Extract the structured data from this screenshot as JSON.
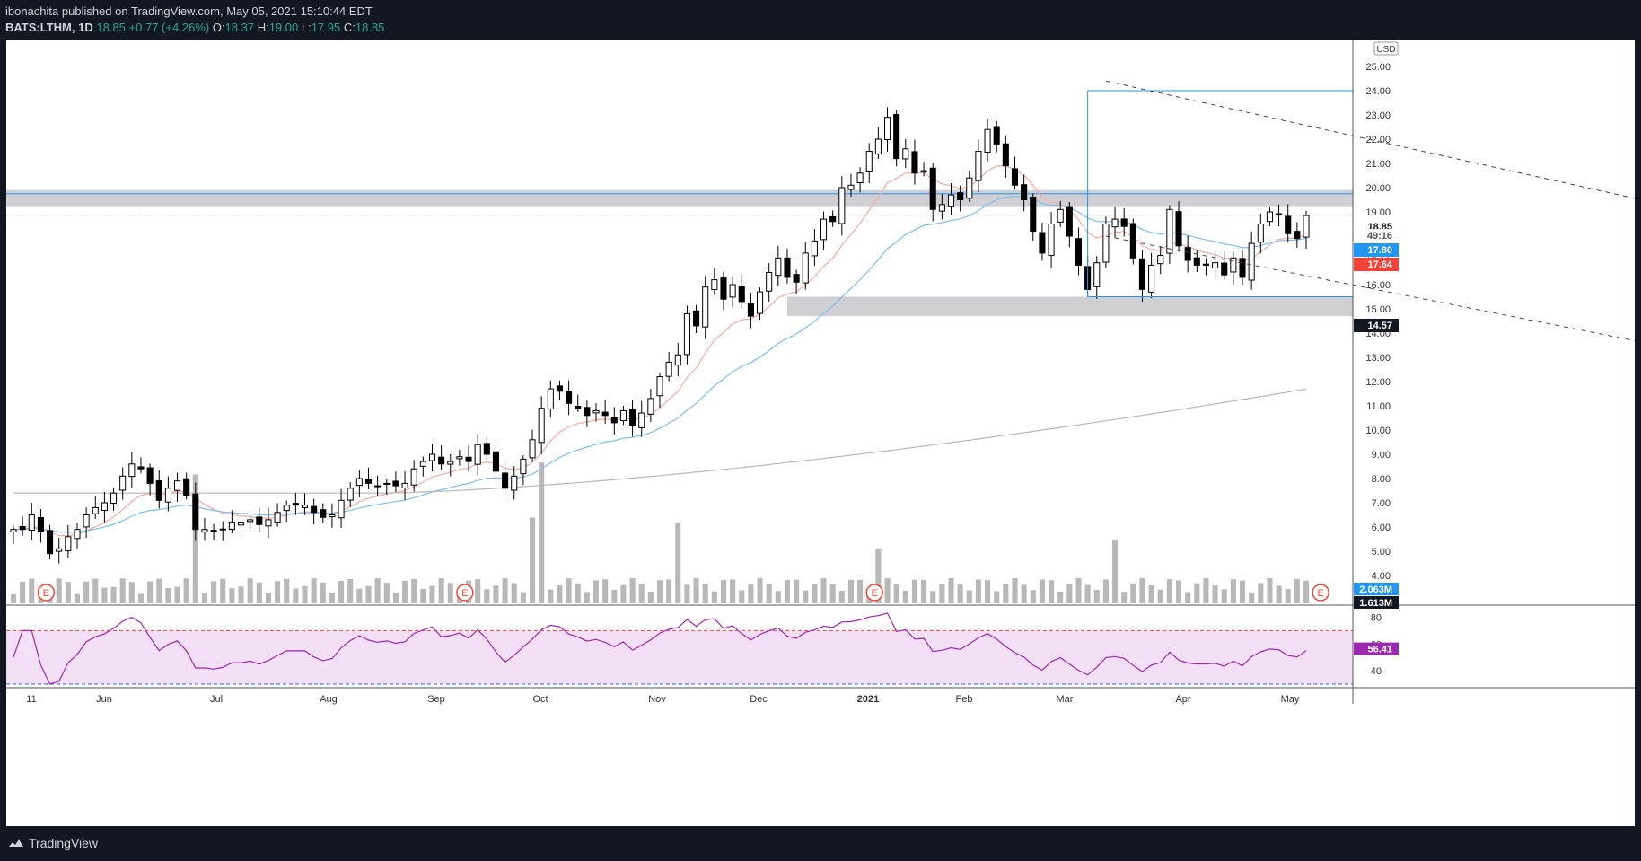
{
  "header": {
    "publisher_line": "ibonachita published on TradingView.com, May 05, 2021 15:10:44 EDT",
    "symbol": "BATS:LTHM, 1D",
    "last": "18.85",
    "change": "+0.77 (+4.26%)",
    "open_label": "O:",
    "open": "18.37",
    "high_label": "H:",
    "high": "19.00",
    "low_label": "L:",
    "low": "17.95",
    "close_label": "C:",
    "close": "18.85"
  },
  "footer": {
    "brand": "TradingView"
  },
  "colors": {
    "up": "#ffffff",
    "down": "#000000",
    "candle_border": "#000000",
    "ema_fast": "#f7a9a3",
    "ema_mid": "#7ebef0",
    "sma_long": "#b8b8b8",
    "zone": "#c8c8cc",
    "box": "#2196f3",
    "rsi_line": "#9c27b0",
    "rsi_fill": "#f3e0f7",
    "volume": "#b8b8b8"
  },
  "chart_data": {
    "type": "candlestick",
    "timeframe": "1D",
    "currency": "USD",
    "price_axis": {
      "ticks": [
        4.0,
        5.0,
        6.0,
        7.0,
        8.0,
        9.0,
        10.0,
        11.0,
        12.0,
        13.0,
        14.0,
        15.0,
        16.0,
        17.0,
        18.0,
        19.0,
        20.0,
        21.0,
        22.0,
        23.0,
        24.0,
        25.0
      ],
      "ylim": [
        3.0,
        26.0
      ]
    },
    "time_axis": {
      "labels": [
        "11",
        "Jun",
        "Jul",
        "Aug",
        "Sep",
        "Oct",
        "Nov",
        "Dec",
        "2021",
        "Feb",
        "Mar",
        "Apr",
        "May"
      ]
    },
    "price_badges": [
      {
        "label": "18.85",
        "color": "#ffffff",
        "text_color": "#131722"
      },
      {
        "label": "49:16",
        "color": "#ffffff",
        "text_color": "#555555"
      },
      {
        "label": "17.80",
        "color": "#2196f3",
        "text_color": "#ffffff"
      },
      {
        "label": "17.64",
        "color": "#f44336",
        "text_color": "#ffffff"
      },
      {
        "label": "14.57",
        "color": "#131722",
        "text_color": "#ffffff"
      }
    ],
    "volume_badges": [
      "2.063M",
      "1.613M"
    ],
    "earnings_marker": "E",
    "earnings_dates": [
      3,
      49,
      94,
      143,
      181
    ],
    "resistance_zone": [
      19.2,
      19.9
    ],
    "resistance_line": 19.75,
    "support_zone": [
      14.7,
      15.5
    ],
    "horizontal_dotted": 18.85,
    "range_box": {
      "from": 118,
      "to": 184,
      "low": 15.5,
      "high": 24.0
    },
    "channel_upper": {
      "from": [
        120,
        24.4
      ],
      "to": [
        186,
        18.9
      ]
    },
    "channel_lower": {
      "from": [
        120,
        18.0
      ],
      "to": [
        186,
        13.1
      ]
    },
    "rsi": {
      "ticks": [
        40,
        60,
        80
      ],
      "upper_band": 70,
      "lower_band": 30,
      "last": "56.41"
    },
    "series": [
      {
        "name": "LTHM",
        "values": [
          5.9,
          5.9,
          6.5,
          5.8,
          4.9,
          5.1,
          5.6,
          5.9,
          6.5,
          6.8,
          7.0,
          7.4,
          8.1,
          8.6,
          8.4,
          7.8,
          7.1,
          7.6,
          7.9,
          7.3,
          5.9,
          5.9,
          5.8,
          5.9,
          6.2,
          6.2,
          6.3,
          6.1,
          6.3,
          6.6,
          6.9,
          6.9,
          6.9,
          6.6,
          6.4,
          6.5,
          7.1,
          7.6,
          8.0,
          7.8,
          7.7,
          7.8,
          7.7,
          7.8,
          8.4,
          8.7,
          9.0,
          8.6,
          8.7,
          8.9,
          8.7,
          9.4,
          9.0,
          8.3,
          7.6,
          8.1,
          8.8,
          9.6,
          10.9,
          11.7,
          11.6,
          11.1,
          10.9,
          10.6,
          10.8,
          10.6,
          10.3,
          10.8,
          10.2,
          10.7,
          11.3,
          12.2,
          12.8,
          13.1,
          14.8,
          14.3,
          15.9,
          16.2,
          15.4,
          16.0,
          15.3,
          14.7,
          15.7,
          16.5,
          17.1,
          16.3,
          16.1,
          17.3,
          17.8,
          18.7,
          18.6,
          20.0,
          20.1,
          20.6,
          21.5,
          22.0,
          22.9,
          21.2,
          21.6,
          20.6,
          20.7,
          19.1,
          19.3,
          19.7,
          19.5,
          20.4,
          21.5,
          22.4,
          21.8,
          20.9,
          20.1,
          19.5,
          18.2,
          17.3,
          18.5,
          19.1,
          18.0,
          16.8,
          15.8,
          16.9,
          18.5,
          18.7,
          18.4,
          17.1,
          15.8,
          16.8,
          17.2,
          19.1,
          17.6,
          17.0,
          16.8,
          16.8,
          16.9,
          16.4,
          17.1,
          16.3,
          17.7,
          18.5,
          19.0,
          18.9,
          18.1,
          17.9,
          18.85
        ]
      }
    ]
  }
}
